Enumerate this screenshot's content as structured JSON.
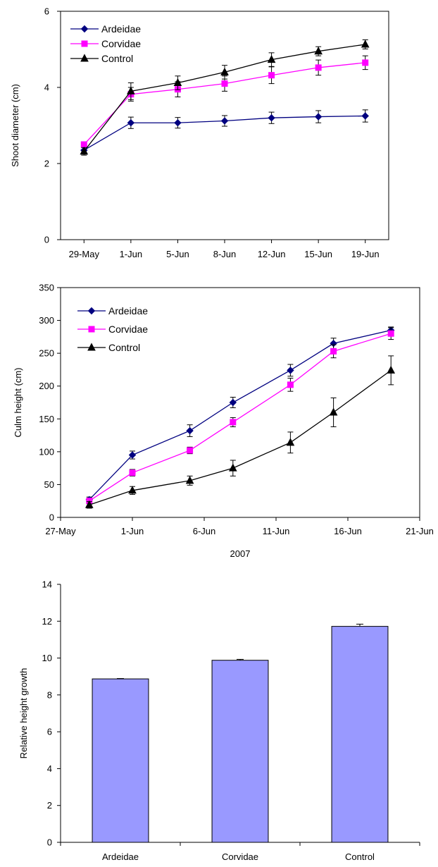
{
  "chart_data": [
    {
      "type": "line",
      "title": "",
      "xlabel": "",
      "ylabel": "Shoot diameter (cm)",
      "ylim": [
        0,
        6
      ],
      "yticks": [
        0,
        2,
        4,
        6
      ],
      "categories": [
        "29-May",
        "1-Jun",
        "5-Jun",
        "8-Jun",
        "12-Jun",
        "15-Jun",
        "19-Jun"
      ],
      "grid": false,
      "legend": "top-left",
      "series": [
        {
          "name": "Ardeidae",
          "color": "#000080",
          "marker": "diamond",
          "values": [
            2.35,
            3.07,
            3.07,
            3.12,
            3.2,
            3.23,
            3.25
          ],
          "errors": [
            0.1,
            0.15,
            0.14,
            0.14,
            0.15,
            0.16,
            0.16
          ]
        },
        {
          "name": "Corvidae",
          "color": "#ff00ff",
          "marker": "square",
          "values": [
            2.5,
            3.82,
            3.95,
            4.1,
            4.32,
            4.52,
            4.65
          ],
          "errors": [
            0.05,
            0.18,
            0.2,
            0.2,
            0.22,
            0.2,
            0.18
          ]
        },
        {
          "name": "Control",
          "color": "#000000",
          "marker": "triangle",
          "values": [
            2.32,
            3.9,
            4.12,
            4.4,
            4.73,
            4.95,
            5.13
          ],
          "errors": [
            0.1,
            0.22,
            0.18,
            0.18,
            0.18,
            0.12,
            0.12
          ]
        }
      ]
    },
    {
      "type": "line",
      "title": "",
      "xlabel": "2007",
      "ylabel": "Culm height (cm)",
      "ylim": [
        0,
        350
      ],
      "yticks": [
        0,
        50,
        100,
        150,
        200,
        250,
        300,
        350
      ],
      "xlim": [
        "2007-05-27",
        "2007-06-21"
      ],
      "xticks": [
        "27-May",
        "1-Jun",
        "6-Jun",
        "11-Jun",
        "16-Jun",
        "21-Jun"
      ],
      "grid": false,
      "legend": "top-left",
      "series": [
        {
          "name": "Ardeidae",
          "color": "#000080",
          "marker": "diamond",
          "x": [
            "2007-05-29",
            "2007-06-01",
            "2007-06-05",
            "2007-06-08",
            "2007-06-12",
            "2007-06-15",
            "2007-06-19"
          ],
          "values": [
            27,
            95,
            132,
            175,
            224,
            265,
            285
          ],
          "errors": [
            4,
            6,
            9,
            8,
            9,
            8,
            5
          ]
        },
        {
          "name": "Corvidae",
          "color": "#ff00ff",
          "marker": "square",
          "x": [
            "2007-05-29",
            "2007-06-01",
            "2007-06-05",
            "2007-06-08",
            "2007-06-12",
            "2007-06-15",
            "2007-06-19"
          ],
          "values": [
            25,
            68,
            102,
            145,
            202,
            253,
            280
          ],
          "errors": [
            4,
            5,
            5,
            7,
            10,
            10,
            9
          ]
        },
        {
          "name": "Control",
          "color": "#000000",
          "marker": "triangle",
          "x": [
            "2007-05-29",
            "2007-06-01",
            "2007-06-05",
            "2007-06-08",
            "2007-06-12",
            "2007-06-15",
            "2007-06-19"
          ],
          "values": [
            19,
            41,
            56,
            75,
            114,
            160,
            224
          ],
          "errors": [
            5,
            6,
            7,
            12,
            16,
            22,
            22
          ]
        }
      ]
    },
    {
      "type": "bar",
      "title": "",
      "xlabel": "",
      "ylabel": "Relative height growth",
      "ylim": [
        0,
        14
      ],
      "yticks": [
        0,
        2,
        4,
        6,
        8,
        10,
        12,
        14
      ],
      "categories": [
        "Ardeidae",
        "Corvidae",
        "Control"
      ],
      "values": [
        8.87,
        9.88,
        11.72
      ],
      "errors": [
        0.02,
        0.05,
        0.12
      ],
      "bar_color": "#9999ff",
      "grid": false
    }
  ]
}
